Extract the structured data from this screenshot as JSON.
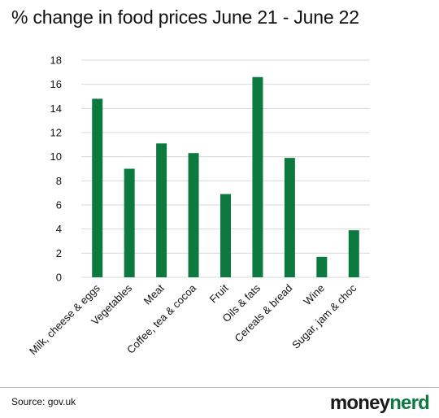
{
  "title": "% change in food prices June 21 - June 22",
  "source": "Source: gov.uk",
  "logo": {
    "part1": "money",
    "part2": "nerd"
  },
  "colors": {
    "bar": "#0c7a3f",
    "logo_accent": "#0c7a3f"
  },
  "chart_data": {
    "type": "bar",
    "title": "% change in food prices June 21 - June 22",
    "xlabel": "",
    "ylabel": "",
    "ylim": [
      0,
      18
    ],
    "yticks": [
      0,
      2,
      4,
      6,
      8,
      10,
      12,
      14,
      16,
      18
    ],
    "grid": true,
    "categories": [
      "Milk, cheese & eggs",
      "Vegetables",
      "Meat",
      "Coffee, tea & cocoa",
      "Fruit",
      "Oils & fats",
      "Cereals & bread",
      "Wine",
      "Sugar, jam & choc"
    ],
    "values": [
      14.8,
      9.0,
      11.1,
      10.3,
      6.9,
      16.6,
      9.9,
      1.7,
      3.9
    ]
  }
}
